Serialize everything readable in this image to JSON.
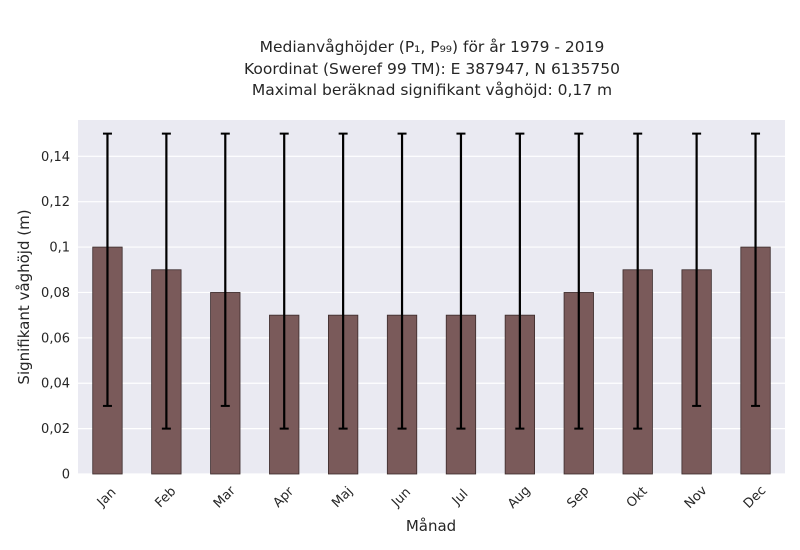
{
  "chart_data": {
    "type": "bar",
    "title_lines": [
      "Medianvåghöjder (P₁, P₉₉) för år 1979 - 2019",
      "Koordinat (Sweref 99 TM): E 387947, N 6135750",
      "Maximal beräknad signifikant våghöjd: 0,17 m"
    ],
    "xlabel": "Månad",
    "ylabel": "Signifikant våghöjd (m)",
    "categories": [
      "Jan",
      "Feb",
      "Mar",
      "Apr",
      "Maj",
      "Jun",
      "Jul",
      "Aug",
      "Sep",
      "Okt",
      "Nov",
      "Dec"
    ],
    "values": [
      0.1,
      0.09,
      0.08,
      0.07,
      0.07,
      0.07,
      0.07,
      0.07,
      0.08,
      0.09,
      0.09,
      0.1
    ],
    "error_low": [
      0.03,
      0.02,
      0.03,
      0.02,
      0.02,
      0.02,
      0.02,
      0.02,
      0.02,
      0.02,
      0.03,
      0.03
    ],
    "error_high": [
      0.15,
      0.15,
      0.15,
      0.15,
      0.15,
      0.15,
      0.15,
      0.15,
      0.15,
      0.15,
      0.15,
      0.15
    ],
    "ylim": [
      0,
      0.156
    ],
    "yticks": [
      0,
      0.02,
      0.04,
      0.06,
      0.08,
      0.1,
      0.12,
      0.14
    ],
    "ytick_labels": [
      "0",
      "0,02",
      "0,04",
      "0,06",
      "0,08",
      "0,1",
      "0,12",
      "0,14"
    ],
    "grid": true,
    "colors": {
      "bar": "#7a5a5a",
      "bar_edge": "#3a2a2a",
      "error": "#000000",
      "plot_bg": "#eaeaf2",
      "grid": "#ffffff",
      "text": "#262626"
    }
  }
}
